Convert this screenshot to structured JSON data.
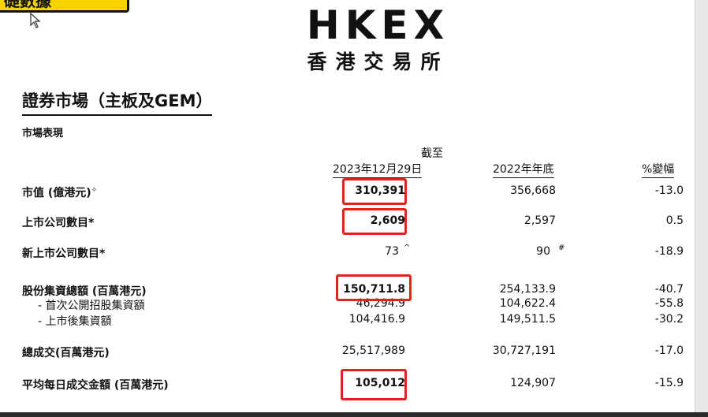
{
  "banner_text": "礎數據",
  "logo": {
    "en": "HKEX",
    "zh": "香港交易所"
  },
  "title": "證券市場（主板及GEM）",
  "section": "市場表現",
  "headers": {
    "col1_top": "截至",
    "col1": "2023年12月29日",
    "col2": "2022年年底",
    "col3": "%變幅"
  },
  "rows": [
    {
      "label": "市值 (億港元)",
      "mark": "✧",
      "v1": "310,391",
      "v2": "356,668",
      "v3": "-13.0"
    },
    {
      "label": "上市公司數目*",
      "v1": "2,609",
      "v2": "2,597",
      "v3": "0.5"
    },
    {
      "label": "新上市公司數目*",
      "v1": "73",
      "v1_mark": "^",
      "v2": "90",
      "v2_mark": "#",
      "v3": "-18.9"
    },
    {
      "label": "股份集資總額 (百萬港元)",
      "v1": "150,711.8",
      "v2": "254,133.9",
      "v3": "-40.7"
    },
    {
      "label": "- 首次公開招股集資額",
      "v1": "46,294.9",
      "v2": "104,622.4",
      "v3": "-55.8"
    },
    {
      "label": "- 上市後集資額",
      "v1": "104,416.9",
      "v2": "149,511.5",
      "v3": "-30.2"
    },
    {
      "label": "總成交(百萬港元)",
      "v1": "25,517,989",
      "v2": "30,727,191",
      "v3": "-17.0"
    },
    {
      "label": "平均每日成交金額 (百萬港元)",
      "v1": "105,012",
      "v2": "124,907",
      "v3": "-15.9"
    }
  ],
  "colors": {
    "highlight": "#e2231a",
    "banner": "#f7d400"
  }
}
